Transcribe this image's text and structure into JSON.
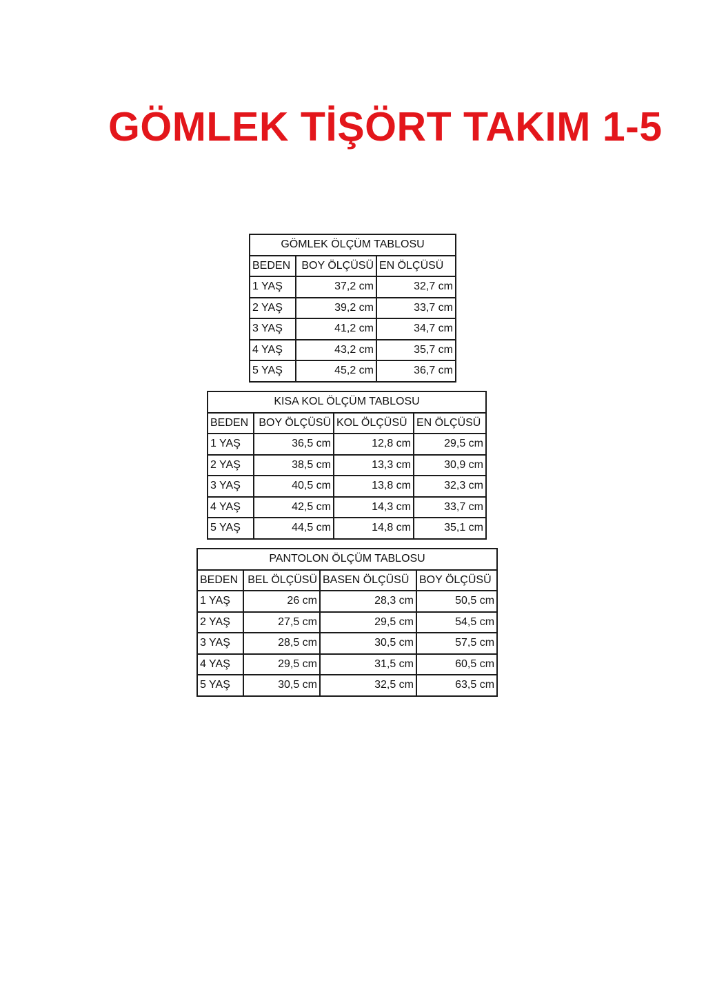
{
  "title": "GÖMLEK TİŞÖRT TAKIM 1-5",
  "colors": {
    "title": "#e3161b",
    "border": "#1a1a1a"
  },
  "tables": [
    {
      "caption": "GÖMLEK ÖLÇÜM TABLOSU",
      "headers": [
        "BEDEN",
        "BOY ÖLÇÜSÜ",
        "EN ÖLÇÜSÜ"
      ],
      "rows": [
        [
          "1 YAŞ",
          "37,2 cm",
          "32,7 cm"
        ],
        [
          "2 YAŞ",
          "39,2 cm",
          "33,7 cm"
        ],
        [
          "3 YAŞ",
          "41,2 cm",
          "34,7 cm"
        ],
        [
          "4 YAŞ",
          "43,2 cm",
          "35,7 cm"
        ],
        [
          "5 YAŞ",
          "45,2 cm",
          "36,7 cm"
        ]
      ]
    },
    {
      "caption": "KISA KOL ÖLÇÜM TABLOSU",
      "headers": [
        "BEDEN",
        "BOY ÖLÇÜSÜ",
        "KOL ÖLÇÜSÜ",
        "EN ÖLÇÜSÜ"
      ],
      "rows": [
        [
          "1 YAŞ",
          "36,5 cm",
          "12,8 cm",
          "29,5 cm"
        ],
        [
          "2 YAŞ",
          "38,5 cm",
          "13,3 cm",
          "30,9 cm"
        ],
        [
          "3 YAŞ",
          "40,5 cm",
          "13,8 cm",
          "32,3 cm"
        ],
        [
          "4 YAŞ",
          "42,5 cm",
          "14,3 cm",
          "33,7 cm"
        ],
        [
          "5 YAŞ",
          "44,5 cm",
          "14,8 cm",
          "35,1 cm"
        ]
      ]
    },
    {
      "caption": "PANTOLON ÖLÇÜM TABLOSU",
      "headers": [
        "BEDEN",
        "BEL ÖLÇÜSÜ",
        "BASEN ÖLÇÜSÜ",
        "BOY ÖLÇÜSÜ"
      ],
      "rows": [
        [
          "1 YAŞ",
          "26 cm",
          "28,3 cm",
          "50,5 cm"
        ],
        [
          "2 YAŞ",
          "27,5 cm",
          "29,5 cm",
          "54,5 cm"
        ],
        [
          "3 YAŞ",
          "28,5 cm",
          "30,5 cm",
          "57,5 cm"
        ],
        [
          "4 YAŞ",
          "29,5 cm",
          "31,5 cm",
          "60,5 cm"
        ],
        [
          "5 YAŞ",
          "30,5 cm",
          "32,5 cm",
          "63,5 cm"
        ]
      ]
    }
  ]
}
